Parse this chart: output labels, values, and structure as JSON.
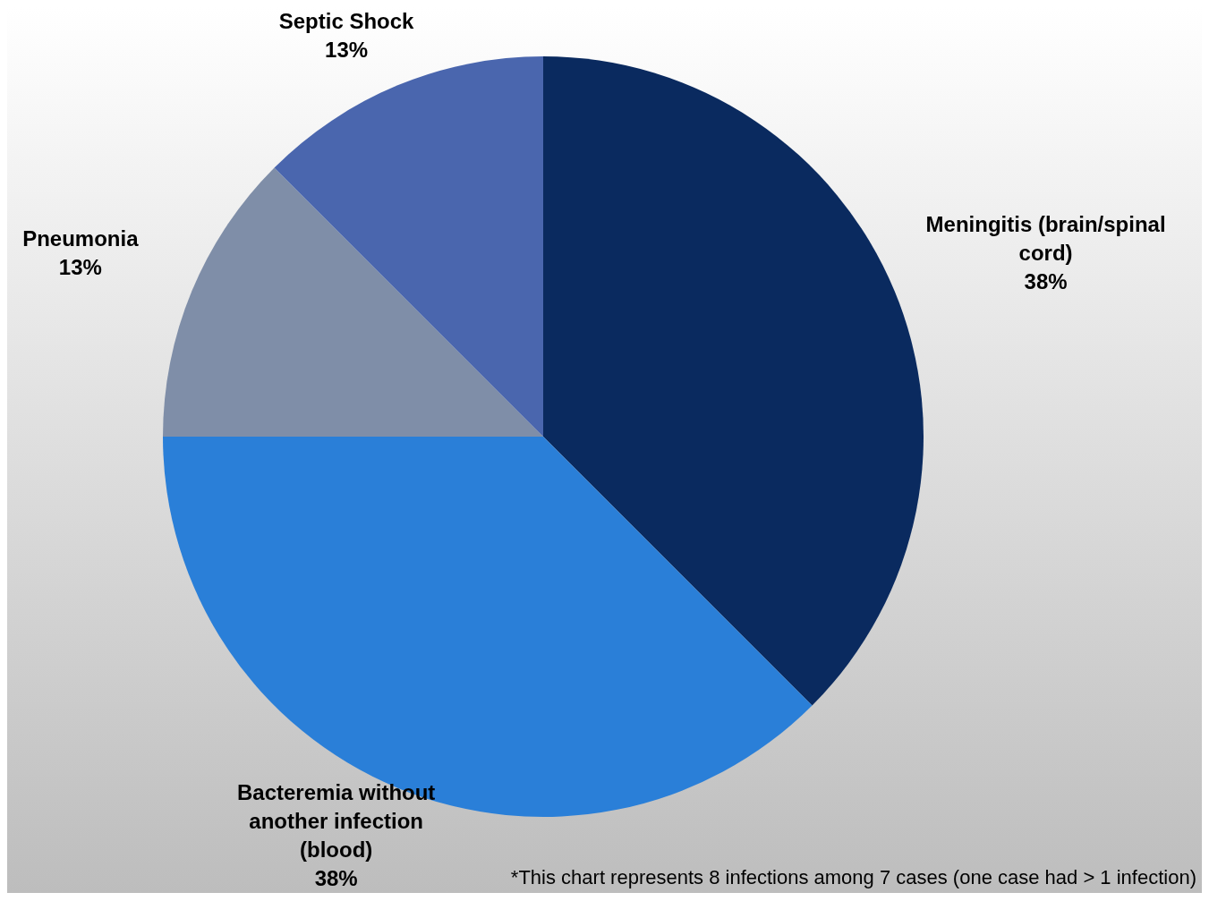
{
  "chart_data": {
    "type": "pie",
    "categories": [
      "Meningitis (brain/spinal cord)",
      "Bacteremia without another infection (blood)",
      "Pneumonia",
      "Septic Shock"
    ],
    "values": [
      37.5,
      37.5,
      12.5,
      12.5
    ],
    "value_labels": [
      "38%",
      "38%",
      "13%",
      "13%"
    ],
    "colors": [
      "#0a2a5f",
      "#2a7fd8",
      "#7f8ea8",
      "#4a66ae"
    ],
    "annotations": [
      "*This chart represents 8 infections among 7 cases (one case had > 1 infection)"
    ]
  }
}
